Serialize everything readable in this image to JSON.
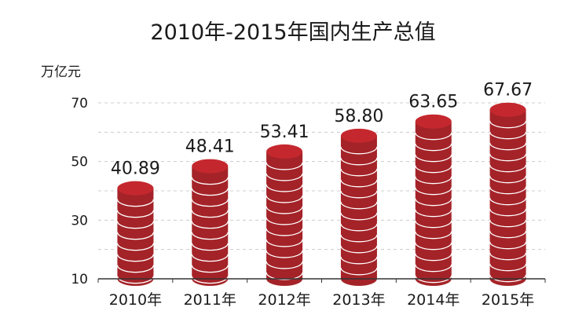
{
  "chart_data": {
    "type": "bar",
    "title": "2010年-2015年国内生产总值",
    "ylabel": "万亿元",
    "xlabel": "",
    "categories": [
      "2010年",
      "2011年",
      "2012年",
      "2013年",
      "2014年",
      "2015年"
    ],
    "values": [
      40.89,
      48.41,
      53.41,
      58.8,
      63.65,
      67.67
    ],
    "value_labels": [
      "40.89",
      "48.41",
      "53.41",
      "58.80",
      "63.65",
      "67.67"
    ],
    "ylim": [
      10,
      70
    ],
    "yticks": [
      10,
      30,
      50,
      70
    ],
    "ytick_labels": [
      "10",
      "30",
      "50",
      "70"
    ],
    "gridlines": [
      20,
      30,
      40,
      50,
      60,
      70
    ],
    "grid": true,
    "grid_style": "dashed",
    "bar_style": "stacked-coins",
    "colors": {
      "bar": "#a42328",
      "bar_top": "#c4282e",
      "bar_ring": "#ffffff",
      "grid": "#cccccc",
      "axis": "#333333",
      "text": "#1a1a1a"
    }
  }
}
